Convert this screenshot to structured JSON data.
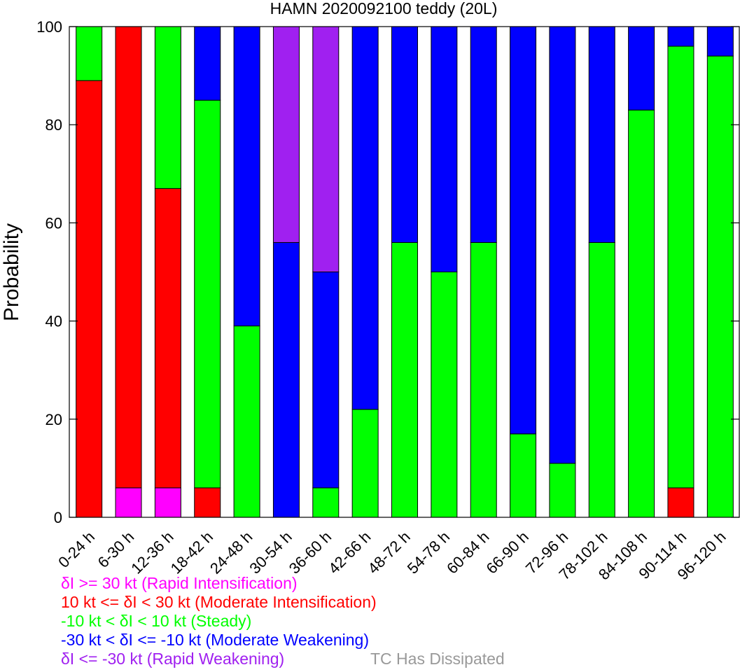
{
  "chart_data": {
    "type": "bar",
    "stacked": true,
    "title": "HAMN 2020092100 teddy (20L)",
    "ylabel": "Probability",
    "xlabel": "",
    "ylim": [
      0,
      100
    ],
    "yticks": [
      0,
      20,
      40,
      60,
      80,
      100
    ],
    "grid": false,
    "categories": [
      "0-24 h",
      "6-30 h",
      "12-36 h",
      "18-42 h",
      "24-48 h",
      "30-54 h",
      "36-60 h",
      "42-66 h",
      "48-72 h",
      "54-78 h",
      "60-84 h",
      "66-90 h",
      "72-96 h",
      "78-102 h",
      "84-108 h",
      "90-114 h",
      "96-120 h"
    ],
    "series": [
      {
        "key": "ri",
        "color": "#ff00ff",
        "values": [
          0,
          6,
          6,
          0,
          0,
          0,
          0,
          0,
          0,
          0,
          0,
          0,
          0,
          0,
          0,
          0,
          0
        ]
      },
      {
        "key": "mi",
        "color": "#ff0000",
        "values": [
          89,
          94,
          61,
          6,
          0,
          0,
          0,
          0,
          0,
          0,
          0,
          0,
          0,
          0,
          0,
          6,
          0
        ]
      },
      {
        "key": "st",
        "color": "#00ff00",
        "values": [
          11,
          0,
          33,
          79,
          39,
          0,
          6,
          22,
          56,
          50,
          56,
          17,
          11,
          56,
          83,
          90,
          94
        ]
      },
      {
        "key": "mw",
        "color": "#0000ff",
        "values": [
          0,
          0,
          0,
          15,
          61,
          56,
          44,
          78,
          44,
          50,
          44,
          83,
          89,
          44,
          17,
          4,
          6
        ]
      },
      {
        "key": "rw",
        "color": "#a020f0",
        "values": [
          0,
          0,
          0,
          0,
          0,
          44,
          50,
          0,
          0,
          0,
          0,
          0,
          0,
          0,
          0,
          0,
          0
        ]
      }
    ]
  },
  "legend": {
    "items": [
      {
        "text": "δI >= 30 kt (Rapid Intensification)",
        "color": "#ff00ff"
      },
      {
        "text": "10 kt <= δI < 30 kt (Moderate Intensification)",
        "color": "#ff0000"
      },
      {
        "text": "-10 kt < δI < 10 kt (Steady)",
        "color": "#00ff00"
      },
      {
        "text": "-30 kt < δI <= -10 kt (Moderate Weakening)",
        "color": "#0000ff"
      },
      {
        "text": "δI <= -30 kt (Rapid Weakening)",
        "color": "#a020f0"
      }
    ],
    "dissipated": {
      "text": "TC Has Dissipated",
      "color": "#999999"
    }
  }
}
